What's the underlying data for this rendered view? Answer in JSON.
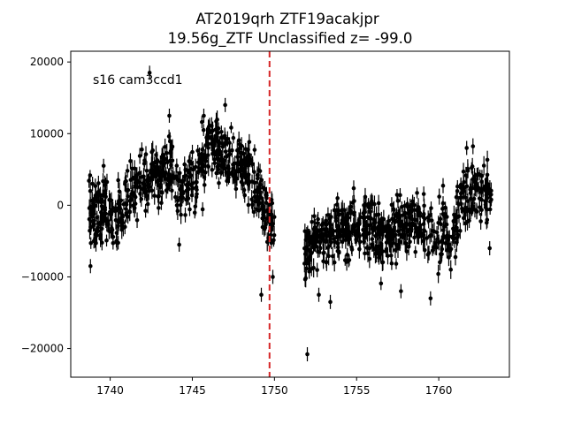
{
  "chart_data": {
    "type": "scatter",
    "title_line1": "AT2019qrh  ZTF19acakjpr",
    "title_line2": "19.56g_ZTF Unclassified z= -99.0",
    "xlabel": "",
    "ylabel": "",
    "xlim": [
      1737.6,
      1764.3
    ],
    "ylim": [
      -24000,
      21500
    ],
    "xticks": [
      1740,
      1745,
      1750,
      1755,
      1760
    ],
    "yticks": [
      -20000,
      -10000,
      0,
      10000,
      20000
    ],
    "xtick_labels": [
      "1740",
      "1745",
      "1750",
      "1755",
      "1760"
    ],
    "ytick_labels": [
      "−20000",
      "−10000",
      "0",
      "10000",
      "20000"
    ],
    "annotation": "s16 cam3ccd1",
    "vline": {
      "x": 1749.7,
      "color": "#d62728",
      "style": "dashed"
    },
    "grid": false,
    "legend": "none",
    "marker_color": "#000000",
    "series": [
      {
        "trend": [
          [
            1738.7,
            0
          ],
          [
            1739.2,
            -1500
          ],
          [
            1739.7,
            -500
          ],
          [
            1740.2,
            -2000
          ],
          [
            1740.7,
            0
          ],
          [
            1741.2,
            2500
          ],
          [
            1741.7,
            3000
          ],
          [
            1742.2,
            3500
          ],
          [
            1742.7,
            4000
          ],
          [
            1743.2,
            4500
          ],
          [
            1743.7,
            5000
          ],
          [
            1744.2,
            1500
          ],
          [
            1744.7,
            3500
          ],
          [
            1745.2,
            4000
          ],
          [
            1745.7,
            6000
          ],
          [
            1746.2,
            9000
          ],
          [
            1746.7,
            7500
          ],
          [
            1747.2,
            6000
          ],
          [
            1747.7,
            6500
          ],
          [
            1748.2,
            6000
          ],
          [
            1748.7,
            4000
          ],
          [
            1749.2,
            1000
          ],
          [
            1749.7,
            -2000
          ],
          [
            1750.0,
            -3500
          ],
          [
            1751.8,
            -6500
          ],
          [
            1752.3,
            -5500
          ],
          [
            1752.8,
            -5000
          ],
          [
            1753.3,
            -4000
          ],
          [
            1753.8,
            -3000
          ],
          [
            1754.3,
            -3500
          ],
          [
            1754.8,
            -3500
          ],
          [
            1755.3,
            -3500
          ],
          [
            1755.8,
            -2000
          ],
          [
            1756.3,
            -4000
          ],
          [
            1756.8,
            -5000
          ],
          [
            1757.3,
            -3500
          ],
          [
            1757.8,
            -2500
          ],
          [
            1758.3,
            -2000
          ],
          [
            1758.8,
            -2500
          ],
          [
            1759.3,
            -3000
          ],
          [
            1759.8,
            -4500
          ],
          [
            1760.3,
            -3500
          ],
          [
            1760.8,
            -5000
          ],
          [
            1761.3,
            0
          ],
          [
            1761.8,
            1500
          ],
          [
            1762.3,
            2500
          ],
          [
            1762.8,
            2000
          ],
          [
            1763.2,
            1000
          ]
        ],
        "scatter_amplitude": 3500,
        "outliers": [
          [
            1742.4,
            18500
          ],
          [
            1738.8,
            -8500
          ],
          [
            1739.6,
            5500
          ],
          [
            1745.7,
            12500
          ],
          [
            1747.0,
            14000
          ],
          [
            1749.2,
            -12500
          ],
          [
            1749.9,
            -10000
          ],
          [
            1752.0,
            -20800
          ],
          [
            1752.7,
            -12500
          ],
          [
            1753.4,
            -13500
          ],
          [
            1757.7,
            -12000
          ],
          [
            1759.5,
            -13000
          ],
          [
            1761.7,
            8000
          ],
          [
            1763.1,
            -6000
          ],
          [
            1744.2,
            -5500
          ],
          [
            1743.6,
            12500
          ]
        ]
      }
    ]
  }
}
